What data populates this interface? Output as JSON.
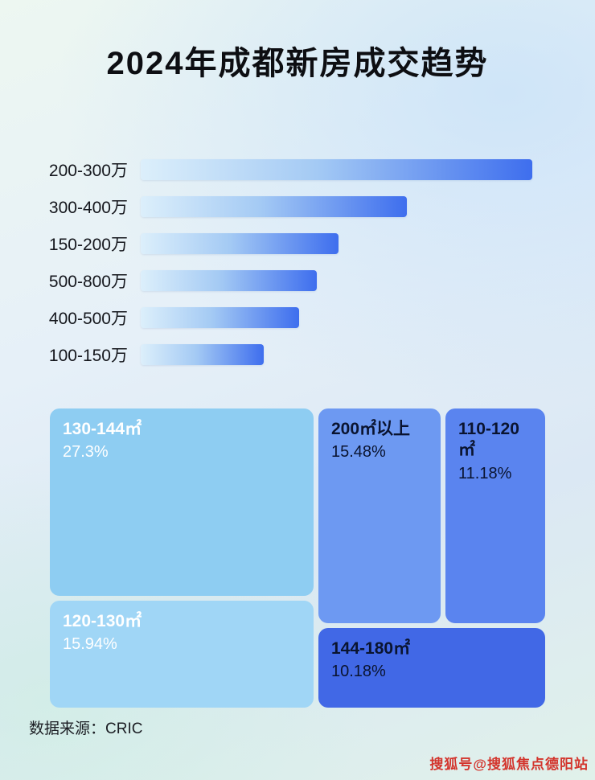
{
  "page": {
    "title": "2024年成都新房成交趋势",
    "source_label": "数据来源：CRIC",
    "watermark": "搜狐号@搜狐焦点德阳站",
    "watermark_color": "#d3342c"
  },
  "chart_data": [
    {
      "type": "bar",
      "orientation": "horizontal",
      "title": "2024年成都新房成交趋势",
      "xlabel": "",
      "ylabel": "",
      "value_basis": "relative length, % of longest bar (no numeric axis shown)",
      "categories": [
        "200-300万",
        "300-400万",
        "150-200万",
        "500-800万",
        "400-500万",
        "100-150万"
      ],
      "values": [
        100,
        68,
        50.5,
        45,
        40.5,
        31.5
      ],
      "bar_gradient": [
        "#dceffb",
        "#3e6eee"
      ],
      "grid": false,
      "legend": false
    },
    {
      "type": "treemap",
      "title": "",
      "items": [
        {
          "label": "130-144㎡",
          "value": 27.3,
          "display": "27.3%",
          "color": "#8ecdf2",
          "text_color": "#ffffff"
        },
        {
          "label": "120-130㎡",
          "value": 15.94,
          "display": "15.94%",
          "color": "#a0d6f6",
          "text_color": "#ffffff"
        },
        {
          "label": "200㎡以上",
          "value": 15.48,
          "display": "15.48%",
          "color": "#6d99f2",
          "text_color": "#0a1430"
        },
        {
          "label": "110-120㎡",
          "value": 11.18,
          "display": "11.18%",
          "color": "#5a84ef",
          "text_color": "#0a1430"
        },
        {
          "label": "144-180㎡",
          "value": 10.18,
          "display": "10.18%",
          "color": "#4168e6",
          "text_color": "#0a1430"
        }
      ]
    }
  ]
}
